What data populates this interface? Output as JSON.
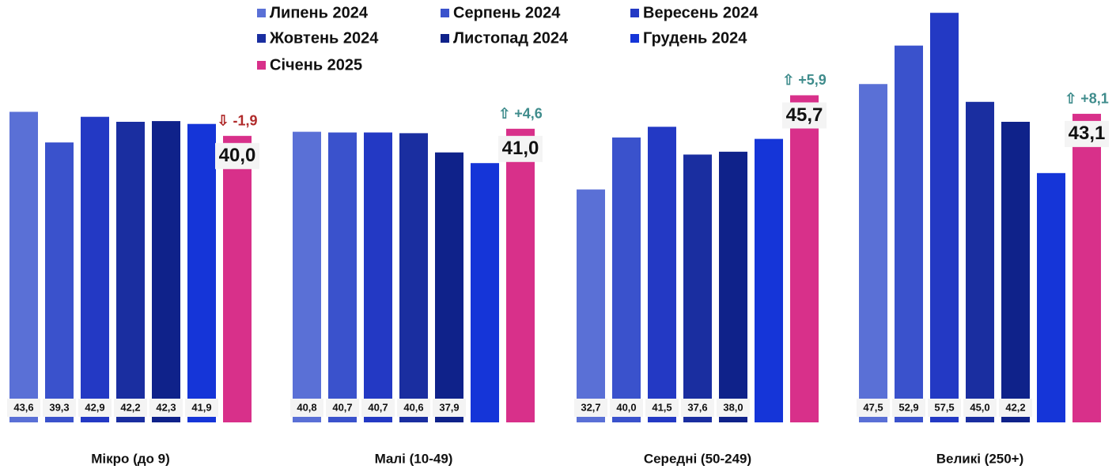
{
  "chart_data": {
    "type": "bar",
    "categories": [
      "Мікро (до 9)",
      "Малі (10-49)",
      "Середні (50-249)",
      "Великі (250+)"
    ],
    "series": [
      {
        "name": "Липень 2024",
        "color": "#5a70d6",
        "values": [
          43.6,
          40.8,
          32.7,
          47.5
        ],
        "value_labels": [
          "43,6",
          "40,8",
          "32,7",
          "47,5"
        ]
      },
      {
        "name": "Серпень 2024",
        "color": "#3a52cc",
        "values": [
          39.3,
          40.7,
          40.0,
          52.9
        ],
        "value_labels": [
          "39,3",
          "40,7",
          "40,0",
          "52,9"
        ]
      },
      {
        "name": "Вересень 2024",
        "color": "#2339c4",
        "values": [
          42.9,
          40.7,
          41.5,
          57.5
        ],
        "value_labels": [
          "42,9",
          "40,7",
          "41,5",
          "57,5"
        ]
      },
      {
        "name": "Жовтень 2024",
        "color": "#1a2ea0",
        "values": [
          42.2,
          40.6,
          37.6,
          45.0
        ],
        "value_labels": [
          "42,2",
          "40,6",
          "37,6",
          "45,0"
        ]
      },
      {
        "name": "Листопад 2024",
        "color": "#0f228a",
        "values": [
          42.3,
          37.9,
          38.0,
          42.2
        ],
        "value_labels": [
          "42,3",
          "37,9",
          "38,0",
          "42,2"
        ]
      },
      {
        "name": "Грудень 2024",
        "color": "#1535d8",
        "values": [
          41.9,
          36.4,
          39.8,
          35.0
        ],
        "value_labels": [
          "41,9",
          null,
          null,
          null
        ]
      },
      {
        "name": "Січень 2025",
        "color": "#d8308a",
        "values": [
          40.0,
          41.0,
          45.7,
          43.1
        ],
        "value_labels": [
          "40,0",
          "41,0",
          "45,7",
          "43,1"
        ],
        "highlight": true
      }
    ],
    "annotations": [
      {
        "text": "⇩ -1,9",
        "color": "#b02a2a"
      },
      {
        "text": "⇧ +4,6",
        "color": "#3f8c8c"
      },
      {
        "text": "⇧ +5,9",
        "color": "#3f8c8c"
      },
      {
        "text": "⇧ +8,1",
        "color": "#3f8c8c"
      }
    ],
    "ylim": [
      0,
      59.3
    ]
  }
}
